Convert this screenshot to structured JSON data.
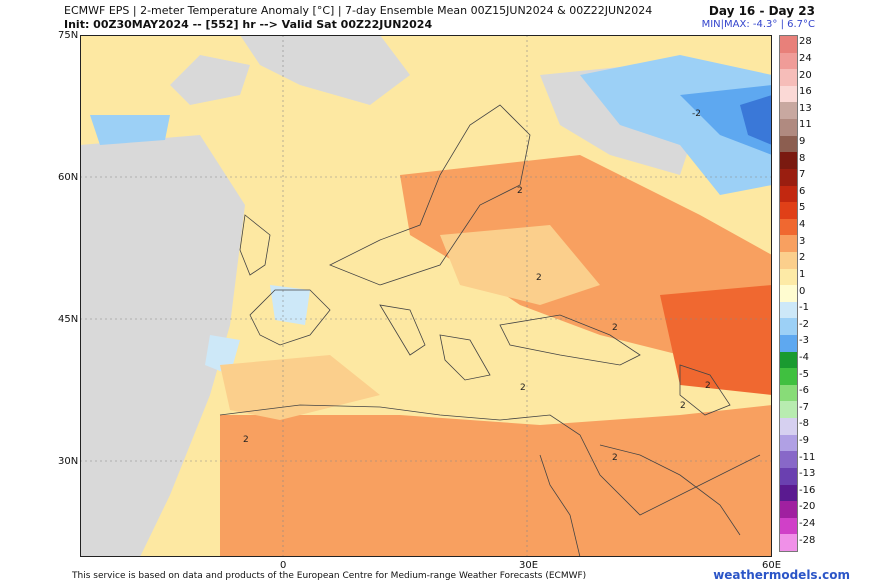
{
  "header": {
    "line1": "ECMWF EPS | 2-meter Temperature Anomaly [°C] | 7-day Ensemble Mean 00Z15JUN2024 & 00Z22JUN2024",
    "line2": "Init: 00Z30MAY2024 -- [552] hr --> Valid Sat 00Z22JUN2024",
    "days": "Day 16 - Day 23",
    "minmax": "MIN|MAX: -4.3° | 6.7°C"
  },
  "lat_labels": [
    "75N",
    "60N",
    "45N",
    "30N"
  ],
  "lon_labels": [
    "0",
    "30E",
    "60E"
  ],
  "map_labels": [
    "2",
    "2",
    "2",
    "2",
    "2",
    "2",
    "2",
    "2",
    "-2"
  ],
  "legend": {
    "labels": [
      "28",
      "24",
      "20",
      "16",
      "13",
      "11",
      "9",
      "8",
      "7",
      "6",
      "5",
      "4",
      "3",
      "2",
      "1",
      "0",
      "-1",
      "-2",
      "-3",
      "-4",
      "-5",
      "-6",
      "-7",
      "-8",
      "-9",
      "-11",
      "-13",
      "-16",
      "-20",
      "-24",
      "-28"
    ],
    "colors": [
      "#e8807a",
      "#f09c98",
      "#f6bdb9",
      "#fbd9d6",
      "#c8a8a0",
      "#b08a80",
      "#8c5e50",
      "#7a1a10",
      "#9a1e10",
      "#c22810",
      "#e04018",
      "#f06830",
      "#f8a060",
      "#fbcf8c",
      "#fdeaa6",
      "#fffcd0",
      "#cde8f8",
      "#9cd0f6",
      "#5ea8f0",
      "#1a9a30",
      "#40c040",
      "#88dc78",
      "#b8ecb0",
      "#d6d0f0",
      "#b0a0e4",
      "#8868c8",
      "#6a40b0",
      "#5a1a90",
      "#a020a0",
      "#d040c8",
      "#f090e8"
    ]
  },
  "footer": "This service is based on data and products of the European Centre for Medium-range Weather Forecasts (ECMWF)",
  "brand": "weathermodels.com"
}
